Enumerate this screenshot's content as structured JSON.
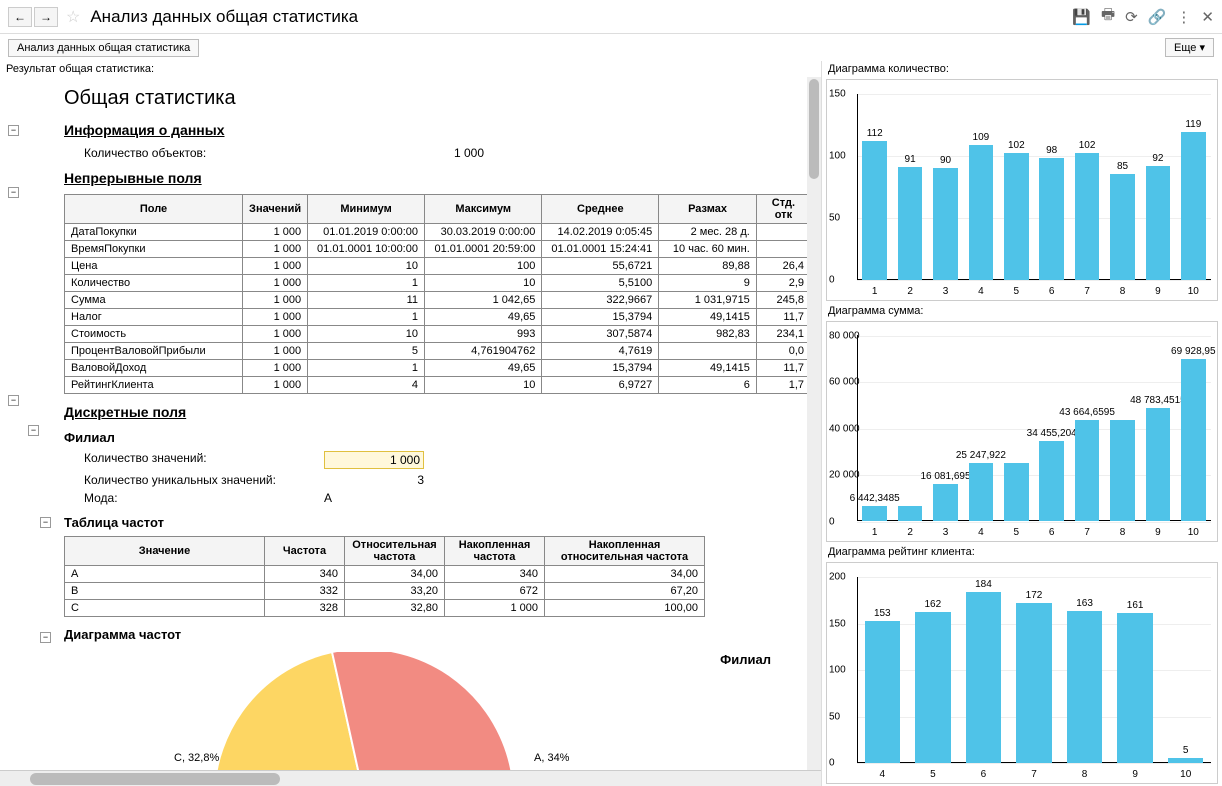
{
  "title": "Анализ данных общая статистика",
  "tab_label": "Анализ данных общая статистика",
  "more_label": "Еще ▾",
  "left_section_label": "Результат общая статистика:",
  "main_heading": "Общая статистика",
  "info_heading": "Информация о данных",
  "object_count_label": "Количество объектов:",
  "object_count_value": "1 000",
  "continuous_heading": "Непрерывные поля",
  "cont_cols": [
    "Поле",
    "Значений",
    "Минимум",
    "Максимум",
    "Среднее",
    "Размах",
    "Стд. отк"
  ],
  "cont_rows": [
    [
      "ДатаПокупки",
      "1 000",
      "01.01.2019 0:00:00",
      "30.03.2019 0:00:00",
      "14.02.2019 0:05:45",
      "2 мес. 28 д.",
      ""
    ],
    [
      "ВремяПокупки",
      "1 000",
      "01.01.0001 10:00:00",
      "01.01.0001 20:59:00",
      "01.01.0001 15:24:41",
      "10 час. 60 мин.",
      ""
    ],
    [
      "Цена",
      "1 000",
      "10",
      "100",
      "55,6721",
      "89,88",
      "26,4"
    ],
    [
      "Количество",
      "1 000",
      "1",
      "10",
      "5,5100",
      "9",
      "2,9"
    ],
    [
      "Сумма",
      "1 000",
      "11",
      "1 042,65",
      "322,9667",
      "1 031,9715",
      "245,8"
    ],
    [
      "Налог",
      "1 000",
      "1",
      "49,65",
      "15,3794",
      "49,1415",
      "11,7"
    ],
    [
      "Стоимость",
      "1 000",
      "10",
      "993",
      "307,5874",
      "982,83",
      "234,1"
    ],
    [
      "ПроцентВаловойПрибыли",
      "1 000",
      "5",
      "4,761904762",
      "4,7619",
      "",
      "0,0"
    ],
    [
      "ВаловойДоход",
      "1 000",
      "1",
      "49,65",
      "15,3794",
      "49,1415",
      "11,7"
    ],
    [
      "РейтингКлиента",
      "1 000",
      "4",
      "10",
      "6,9727",
      "6",
      "1,7"
    ]
  ],
  "discrete_heading": "Дискретные поля",
  "branch_heading": "Филиал",
  "val_count_label": "Количество значений:",
  "val_count_value": "1 000",
  "unique_count_label": "Количество уникальных значений:",
  "unique_count_value": "3",
  "mode_label": "Мода:",
  "mode_value": "A",
  "freq_table_heading": "Таблица частот",
  "freq_cols": [
    "Значение",
    "Частота",
    "Относительная частота",
    "Накопленная частота",
    "Накопленная относительная частота"
  ],
  "freq_rows": [
    [
      "A",
      "340",
      "34,00",
      "340",
      "34,00"
    ],
    [
      "B",
      "332",
      "33,20",
      "672",
      "67,20"
    ],
    [
      "C",
      "328",
      "32,80",
      "1 000",
      "100,00"
    ]
  ],
  "freq_chart_heading": "Диаграмма частот",
  "pie_title": "Филиал",
  "pie_labels": {
    "c": "C, 32,8%",
    "a": "A, 34%"
  },
  "pie_colors": {
    "a": "#f28b82",
    "b": "#81c995",
    "c": "#fdd663"
  },
  "charts": {
    "qty": {
      "label": "Диаграмма количество:",
      "ylim": [
        0,
        150
      ],
      "ytick_step": 50,
      "categories": [
        "1",
        "2",
        "3",
        "4",
        "5",
        "6",
        "7",
        "8",
        "9",
        "10"
      ],
      "values": [
        112,
        91,
        90,
        109,
        102,
        98,
        102,
        85,
        92,
        119
      ],
      "bar_color": "#4fc3e8"
    },
    "sum": {
      "label": "Диаграмма сумма:",
      "ylim": [
        0,
        80000
      ],
      "ytick_step": 20000,
      "categories": [
        "1",
        "2",
        "3",
        "4",
        "5",
        "6",
        "7",
        "8",
        "9",
        "10"
      ],
      "values": [
        6442.3485,
        6442.3485,
        16081.695,
        25247.922,
        25247.922,
        34455.204,
        43664.6595,
        43664.6595,
        48783.4515,
        69928.95
      ],
      "value_labels": [
        "6 442,3485",
        "",
        "16 081,695",
        "25 247,922",
        "",
        "34 455,204",
        "43 664,6595",
        "",
        "48 783,4515",
        "69 928,95"
      ],
      "bar_color": "#4fc3e8"
    },
    "rating": {
      "label": "Диаграмма рейтинг клиента:",
      "ylim": [
        0,
        200
      ],
      "ytick_step": 50,
      "categories": [
        "4",
        "5",
        "6",
        "7",
        "8",
        "9",
        "10"
      ],
      "values": [
        153,
        162,
        184,
        172,
        163,
        161,
        5
      ],
      "bar_color": "#4fc3e8"
    }
  }
}
